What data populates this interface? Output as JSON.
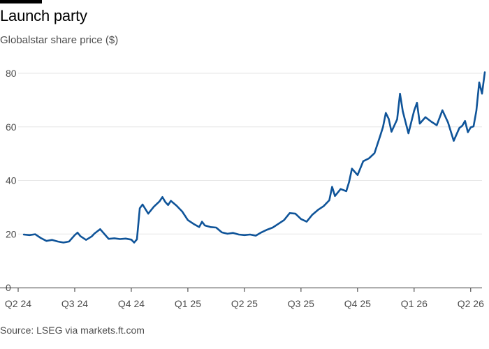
{
  "page": {
    "title": "Launch party",
    "subtitle": "Globalstar share price ($)",
    "source": "Source: LSEG via markets.ft.com"
  },
  "colors": {
    "line": "#0f5499",
    "grid": "#e6e6e6",
    "axis": "#333333",
    "text": "#4d4d4d",
    "accent_bar": "#000000"
  },
  "chart_data": {
    "type": "line",
    "title": "Launch party",
    "subtitle": "Globalstar share price ($)",
    "xlabel": "",
    "ylabel": "",
    "ylim": [
      0,
      80
    ],
    "yticks": [
      0,
      20,
      40,
      60,
      80
    ],
    "xlim": [
      0,
      8.2
    ],
    "xticks": [
      {
        "x": 0,
        "label": "Q2 24"
      },
      {
        "x": 1,
        "label": "Q3 24"
      },
      {
        "x": 2,
        "label": "Q4 24"
      },
      {
        "x": 3,
        "label": "Q1 25"
      },
      {
        "x": 4,
        "label": "Q2 25"
      },
      {
        "x": 5,
        "label": "Q3 25"
      },
      {
        "x": 6,
        "label": "Q4 25"
      },
      {
        "x": 7,
        "label": "Q1 26"
      },
      {
        "x": 8,
        "label": "Q2 26"
      }
    ],
    "grid": "horizontal",
    "series": [
      {
        "name": "Globalstar share price",
        "x": [
          0.1,
          0.2,
          0.3,
          0.4,
          0.5,
          0.6,
          0.7,
          0.8,
          0.9,
          1.0,
          1.05,
          1.1,
          1.2,
          1.3,
          1.35,
          1.45,
          1.55,
          1.6,
          1.7,
          1.8,
          1.9,
          2.0,
          2.05,
          2.1,
          2.15,
          2.2,
          2.3,
          2.4,
          2.5,
          2.55,
          2.6,
          2.65,
          2.7,
          2.8,
          2.9,
          3.0,
          3.1,
          3.2,
          3.25,
          3.3,
          3.4,
          3.5,
          3.6,
          3.7,
          3.8,
          3.9,
          4.0,
          4.1,
          4.2,
          4.3,
          4.4,
          4.5,
          4.6,
          4.7,
          4.8,
          4.9,
          5.0,
          5.1,
          5.2,
          5.3,
          5.4,
          5.5,
          5.55,
          5.6,
          5.7,
          5.8,
          5.85,
          5.9,
          6.0,
          6.1,
          6.2,
          6.3,
          6.4,
          6.45,
          6.5,
          6.55,
          6.6,
          6.7,
          6.75,
          6.8,
          6.85,
          6.9,
          7.0,
          7.05,
          7.1,
          7.2,
          7.3,
          7.4,
          7.5,
          7.6,
          7.7,
          7.8,
          7.85,
          7.9,
          7.95,
          8.0,
          8.05,
          8.1,
          8.15,
          8.2,
          8.25
        ],
        "values": [
          19.8,
          19.6,
          19.9,
          18.5,
          17.4,
          17.8,
          17.2,
          16.8,
          17.2,
          19.6,
          20.5,
          19.2,
          17.8,
          19.1,
          20.2,
          21.8,
          19.4,
          18.2,
          18.4,
          18.1,
          18.3,
          17.9,
          16.8,
          18.0,
          29.6,
          31.0,
          27.6,
          30.2,
          32.2,
          33.8,
          32.0,
          30.8,
          32.4,
          30.6,
          28.4,
          25.2,
          23.8,
          22.6,
          24.6,
          23.2,
          22.6,
          22.4,
          20.6,
          20.1,
          20.4,
          19.8,
          19.6,
          19.8,
          19.4,
          20.6,
          21.6,
          22.4,
          23.8,
          25.2,
          27.8,
          27.6,
          25.6,
          24.6,
          27.2,
          29.0,
          30.4,
          32.6,
          37.6,
          34.2,
          36.8,
          36.0,
          39.4,
          44.4,
          42.0,
          47.2,
          48.2,
          50.2,
          56.6,
          60.0,
          65.2,
          63.0,
          58.2,
          62.8,
          72.4,
          65.8,
          61.6,
          57.6,
          66.0,
          69.0,
          61.2,
          63.6,
          62.0,
          60.6,
          66.2,
          61.6,
          54.8,
          59.6,
          60.4,
          62.2,
          58.0,
          59.8,
          60.2,
          66.0,
          76.6,
          72.4,
          80.4
        ]
      }
    ]
  }
}
